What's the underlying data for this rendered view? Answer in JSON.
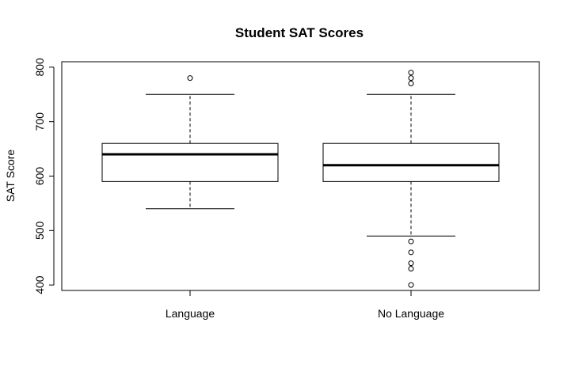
{
  "chart_data": {
    "type": "boxplot",
    "title": "Student SAT Scores",
    "xlabel": "",
    "ylabel": "SAT Score",
    "ylim": [
      390,
      810
    ],
    "yticks": [
      400,
      500,
      600,
      700,
      800
    ],
    "grid": false,
    "legend": "none",
    "categories": [
      "Language",
      "No Language"
    ],
    "boxes": [
      {
        "name": "Language",
        "whisker_low": 540,
        "q1": 590,
        "median": 640,
        "q3": 660,
        "whisker_high": 750,
        "outliers": [
          780
        ]
      },
      {
        "name": "No Language",
        "whisker_low": 490,
        "q1": 590,
        "median": 620,
        "q3": 660,
        "whisker_high": 750,
        "outliers": [
          790,
          780,
          770,
          480,
          460,
          440,
          430,
          400
        ]
      }
    ]
  }
}
